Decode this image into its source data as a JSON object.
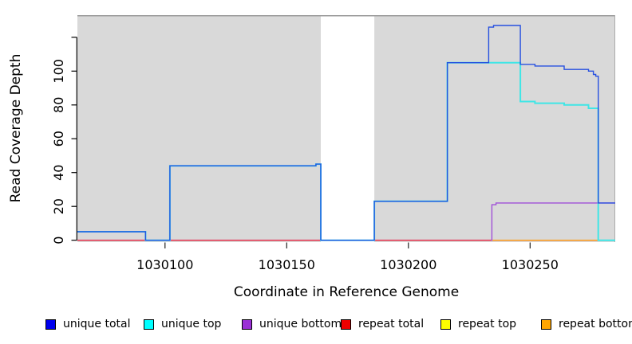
{
  "chart_data": {
    "type": "line",
    "subtype": "step-coverage",
    "title": "",
    "xlabel": "Coordinate in Reference Genome",
    "ylabel": "Read Coverage Depth",
    "xlim": [
      1030064,
      1030285
    ],
    "ylim": [
      -1.1,
      133.1
    ],
    "grid": false,
    "legend_position": "bottom",
    "plot_background": "#d9d9d9",
    "background_regions": [
      [
        1030064,
        1030164
      ],
      [
        1030186,
        1030285
      ]
    ],
    "gap_region": [
      1030164,
      1030186
    ],
    "xticks": [
      {
        "v": 1030100,
        "label": "1030100"
      },
      {
        "v": 1030150,
        "label": "1030150"
      },
      {
        "v": 1030200,
        "label": "1030200"
      },
      {
        "v": 1030250,
        "label": "1030250"
      }
    ],
    "yticks": [
      {
        "v": 0,
        "label": "0"
      },
      {
        "v": 20,
        "label": "20"
      },
      {
        "v": 40,
        "label": "40"
      },
      {
        "v": 60,
        "label": "60"
      },
      {
        "v": 80,
        "label": "80"
      },
      {
        "v": 100,
        "label": "100"
      },
      {
        "v": 120,
        "label": ""
      }
    ],
    "series": [
      {
        "name": "repeat top",
        "color": "#f5e600",
        "points": [
          [
            1030064,
            0
          ]
        ]
      },
      {
        "name": "repeat total",
        "color": "#e5234b",
        "points": [
          [
            1030064,
            0
          ]
        ]
      },
      {
        "name": "repeat bottom",
        "color": "#ff9e14",
        "points": [
          [
            1030234,
            0
          ]
        ]
      },
      {
        "name": "unique bottom",
        "color": "#a04fd8",
        "points": [
          [
            1030234,
            0
          ],
          [
            1030234.3,
            21
          ],
          [
            1030236,
            22
          ]
        ]
      },
      {
        "name": "unique top",
        "color": "#3fe6e6",
        "points": [
          [
            1030064,
            5
          ],
          [
            1030092,
            0
          ],
          [
            1030102,
            44
          ],
          [
            1030162,
            45
          ],
          [
            1030164,
            0
          ],
          [
            1030186,
            23
          ],
          [
            1030216,
            105
          ],
          [
            1030246,
            82
          ],
          [
            1030252,
            81
          ],
          [
            1030264,
            80
          ],
          [
            1030274,
            78
          ],
          [
            1030278,
            0
          ]
        ]
      },
      {
        "name": "unique total",
        "color": "#2750e0",
        "points": [
          [
            1030064,
            5
          ],
          [
            1030092,
            0
          ],
          [
            1030102,
            44
          ],
          [
            1030162,
            45
          ],
          [
            1030164,
            0
          ],
          [
            1030186,
            23
          ],
          [
            1030216,
            105
          ],
          [
            1030233,
            126
          ],
          [
            1030235,
            127
          ],
          [
            1030246,
            104
          ],
          [
            1030252,
            103
          ],
          [
            1030264,
            101
          ],
          [
            1030274,
            100
          ],
          [
            1030276,
            98
          ],
          [
            1030277,
            97
          ],
          [
            1030278,
            22
          ]
        ]
      }
    ]
  },
  "legend": {
    "items": [
      {
        "label": "unique total",
        "color": "#0000ee"
      },
      {
        "label": "unique top",
        "color": "#00ffff"
      },
      {
        "label": "unique bottom",
        "color": "#9b30d6"
      },
      {
        "label": "repeat total",
        "color": "#ee0000"
      },
      {
        "label": "repeat top",
        "color": "#ffff00"
      },
      {
        "label": "repeat bottom",
        "color": "#ffa500"
      }
    ]
  }
}
